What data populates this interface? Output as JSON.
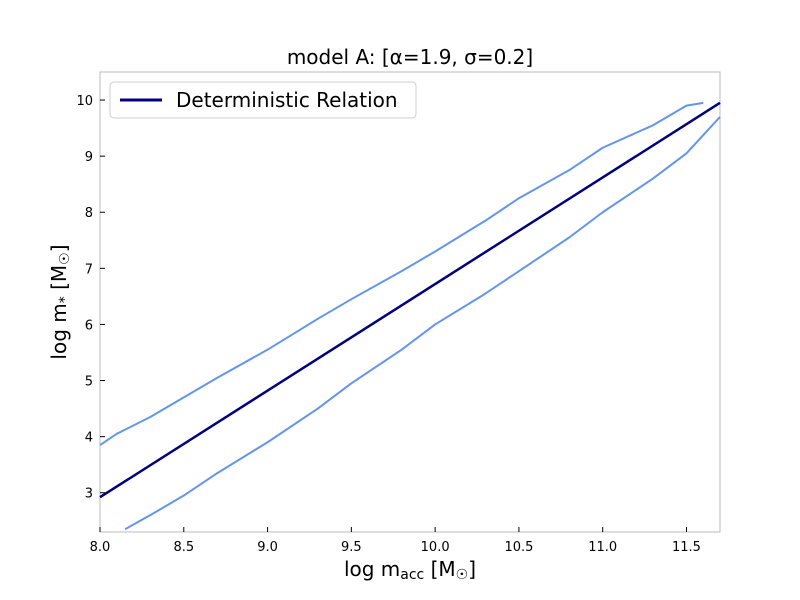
{
  "chart_data": {
    "type": "line",
    "title": "model A: [α=1.9, σ=0.2]",
    "xlabel": "log m_acc [M_☉]",
    "ylabel": "log m_* [M_☉]",
    "xlim": [
      8.0,
      11.7
    ],
    "ylim": [
      2.3,
      10.5
    ],
    "xticks": [
      "8.0",
      "8.5",
      "9.0",
      "9.5",
      "10.0",
      "10.5",
      "11.0",
      "11.5"
    ],
    "yticks": [
      "3",
      "4",
      "5",
      "6",
      "7",
      "8",
      "9",
      "10"
    ],
    "legend": {
      "placement": "upper-left",
      "entries": [
        "Deterministic Relation"
      ]
    },
    "colors": {
      "deterministic": "#000080",
      "contour": "#6495ED"
    },
    "series": [
      {
        "name": "Deterministic Relation",
        "x": [
          8.0,
          11.7
        ],
        "y": [
          2.92,
          9.95
        ]
      },
      {
        "x": [
          8.0,
          8.1,
          8.3,
          8.5,
          8.7,
          9.0,
          9.3,
          9.5,
          9.8,
          10.0,
          10.3,
          10.5,
          10.8,
          11.0,
          11.3,
          11.5,
          11.6
        ],
        "y": [
          3.85,
          4.05,
          4.35,
          4.7,
          5.05,
          5.55,
          6.1,
          6.45,
          6.95,
          7.3,
          7.85,
          8.25,
          8.75,
          9.15,
          9.55,
          9.9,
          9.95
        ]
      },
      {
        "x": [
          8.15,
          8.3,
          8.5,
          8.7,
          9.0,
          9.3,
          9.5,
          9.8,
          10.0,
          10.3,
          10.5,
          10.8,
          11.0,
          11.3,
          11.5,
          11.7
        ],
        "y": [
          2.35,
          2.6,
          2.95,
          3.35,
          3.9,
          4.5,
          4.95,
          5.55,
          6.0,
          6.55,
          6.95,
          7.55,
          8.0,
          8.6,
          9.05,
          9.7
        ]
      }
    ]
  }
}
